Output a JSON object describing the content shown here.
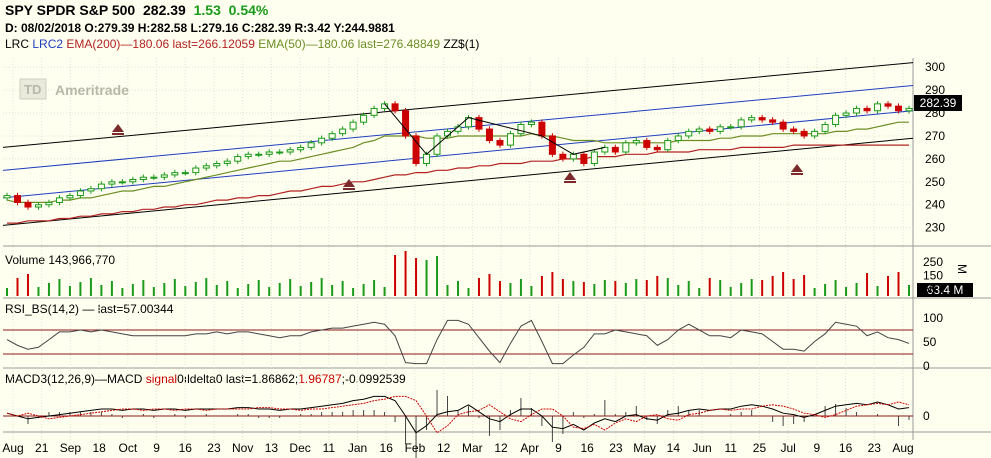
{
  "header": {
    "symbol": "SPY SPDR S&P 500",
    "price": "282.39",
    "change": "1.53",
    "change_pct": "0.54%",
    "ohlc_line": "D: 08/02/2018 O:279.39 H:282.58 L:279.16 C:282.39 R:3.42 Y:244.9881"
  },
  "studies": {
    "lrc": "LRC",
    "lrc2": "LRC2",
    "ema200": "EMA(200)",
    "ema200_val": "180.06 last=266.12059",
    "ema50": "EMA(50)",
    "ema50_val": "180.06 last=276.48849",
    "zz": "ZZ$(1)"
  },
  "watermark": "Ameritrade",
  "volume_label": "Volume 143,966,770",
  "volume_last": "63.4 M",
  "volume_axis_unit": "M",
  "rsi_label": "RSI_BS(14,2)",
  "rsi_last": "last=57.00344",
  "macd_label": "MACD3(12,26,9)",
  "macd_name": "MACD",
  "macd_signal": "signal",
  "macd_delta": "delta",
  "macd_zero": "0",
  "macd_values": "last=1.86862;",
  "macd_value2": "1.96787",
  "macd_value3": ";-0.0992539",
  "price_box": "282.39",
  "colors": {
    "background": "#fffff0",
    "up_candle": "#1a9a1a",
    "down_candle": "#cc0000",
    "ema50": "#6b8e23",
    "ema200": "#b22222",
    "channel_outer": "#000000",
    "channel_inner": "#1f3fbf",
    "marker": "#7a2a2a"
  },
  "chart_data": {
    "type": "line",
    "x_labels": [
      "Aug",
      "21",
      "Sep",
      "18",
      "Oct",
      "9",
      "16",
      "23",
      "Nov",
      "13",
      "Dec",
      "11",
      "Jan",
      "16",
      "Feb",
      "12",
      "Mar",
      "12",
      "Apr",
      "9",
      "16",
      "23",
      "May",
      "14",
      "Jun",
      "11",
      "25",
      "Jul",
      "9",
      "16",
      "23",
      "Aug"
    ],
    "price_axis": {
      "ticks": [
        230,
        240,
        250,
        260,
        270,
        280,
        290,
        300
      ],
      "ylim": [
        222,
        304
      ]
    },
    "closes": [
      244,
      241,
      239,
      240,
      241,
      243,
      244,
      246,
      247,
      249,
      250,
      250,
      251,
      252,
      252,
      253,
      254,
      254,
      256,
      257,
      258,
      259,
      261,
      262,
      262,
      263,
      263,
      264,
      265,
      267,
      269,
      271,
      273,
      276,
      279,
      282,
      284,
      281,
      270,
      258,
      262,
      270,
      272,
      274,
      278,
      273,
      268,
      266,
      271,
      275,
      276,
      270,
      262,
      260,
      262,
      258,
      263,
      265,
      263,
      267,
      268,
      265,
      264,
      268,
      270,
      272,
      273,
      272,
      274,
      274,
      277,
      278,
      277,
      276,
      273,
      272,
      270,
      272,
      275,
      279,
      280,
      282,
      281,
      284,
      283,
      281,
      282
    ],
    "ema50": [
      242,
      241,
      241,
      241,
      241,
      242,
      242,
      243,
      243,
      244,
      245,
      246,
      246,
      247,
      248,
      248,
      249,
      250,
      251,
      252,
      253,
      254,
      255,
      256,
      257,
      258,
      259,
      259,
      260,
      261,
      262,
      263,
      264,
      265,
      267,
      268,
      270,
      270,
      270,
      270,
      269,
      269,
      269,
      270,
      270,
      270,
      270,
      270,
      270,
      270,
      271,
      270,
      270,
      269,
      268,
      268,
      268,
      267,
      267,
      267,
      267,
      267,
      267,
      267,
      268,
      268,
      268,
      268,
      269,
      269,
      270,
      270,
      270,
      271,
      271,
      271,
      271,
      271,
      271,
      272,
      272,
      273,
      273,
      274,
      275,
      276,
      276
    ],
    "ema200": [
      232,
      232,
      233,
      233,
      233,
      234,
      234,
      235,
      235,
      236,
      236,
      237,
      237,
      238,
      238,
      239,
      239,
      240,
      240,
      241,
      242,
      242,
      243,
      243,
      244,
      244,
      245,
      246,
      246,
      247,
      248,
      248,
      249,
      250,
      250,
      251,
      252,
      253,
      253,
      254,
      254,
      255,
      255,
      256,
      256,
      257,
      257,
      258,
      258,
      258,
      259,
      259,
      259,
      260,
      260,
      260,
      261,
      261,
      261,
      262,
      262,
      262,
      263,
      263,
      263,
      263,
      264,
      264,
      264,
      264,
      265,
      265,
      265,
      265,
      265,
      266,
      266,
      266,
      266,
      266,
      266,
      266,
      266,
      266,
      266,
      266,
      266
    ],
    "volume": {
      "last": "63.4 M",
      "ticks": [
        50,
        150,
        250
      ]
    },
    "rsi": {
      "ticks": [
        0,
        50,
        100
      ],
      "overbought": 75,
      "oversold": 25,
      "last": 57.00344
    },
    "macd": {
      "ticks": [
        0
      ]
    }
  }
}
